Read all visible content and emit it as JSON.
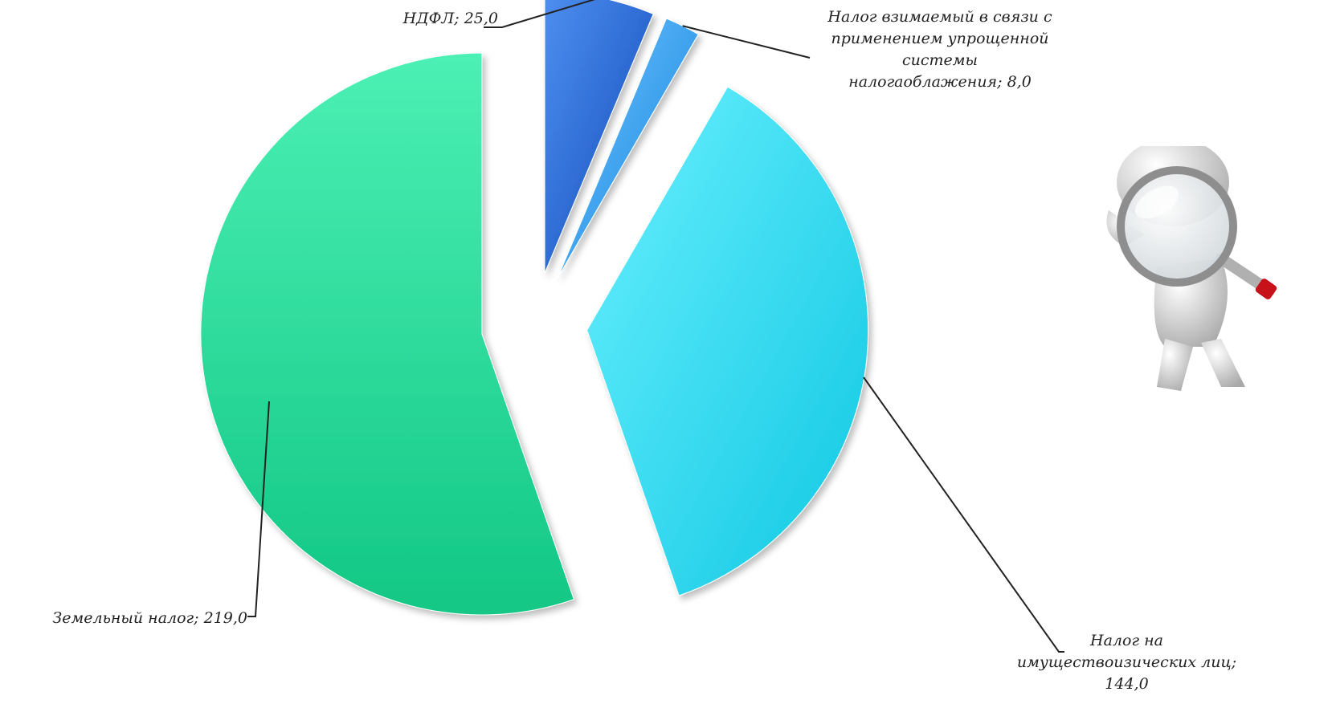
{
  "chart_data": {
    "type": "pie",
    "style": "exploded-3d",
    "title": "",
    "slices": [
      {
        "label": "НДФЛ",
        "value": 25.0,
        "display": "НДФЛ; 25,0",
        "color": "#1f5fd6"
      },
      {
        "label": "Налог взимаемый в связи с применением упрощенной системы налогаоблажения",
        "value": 8.0,
        "display_lines": [
          "Налог взимаемый в связи с",
          "применением упрощенной",
          "системы",
          "налогаоблажения; 8,0"
        ],
        "color": "#2e9ef0"
      },
      {
        "label": "Налог на имуществоизических лиц",
        "value": 144.0,
        "display_lines": [
          "Налог на",
          "имуществоизических лиц;",
          "144,0"
        ],
        "color": "#22d6ea"
      },
      {
        "label": "Земельный налог",
        "value": 219.0,
        "display": "Земельный налог; 219,0",
        "color": "#1ed996"
      }
    ],
    "legend": "none",
    "data_labels": "outside-with-leader-lines"
  },
  "decoration": {
    "figure": "person-with-magnifying-glass"
  }
}
